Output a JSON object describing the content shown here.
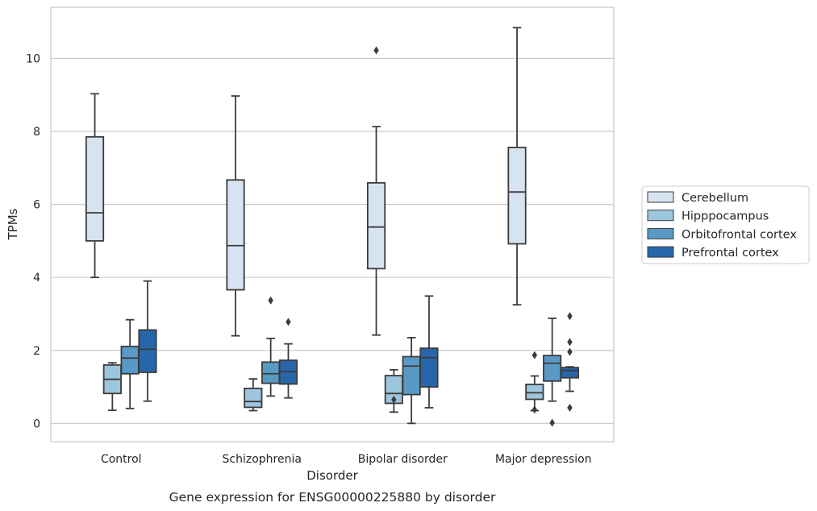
{
  "chart_data": {
    "type": "box",
    "caption": "Gene expression for ENSG00000225880 by disorder",
    "xlabel": "Disorder",
    "ylabel": "TPMs",
    "ylim": [
      -0.5,
      11.4
    ],
    "yticks": [
      0,
      2,
      4,
      6,
      8,
      10
    ],
    "grid": "horizontal",
    "legend_position": "right",
    "categories": [
      "Control",
      "Schizophrenia",
      "Bipolar disorder",
      "Major depression"
    ],
    "series": [
      {
        "name": "Cerebellum",
        "color": "#d6e4f2",
        "boxes": [
          {
            "whisker_low": 4.0,
            "q1": 5.0,
            "median": 5.77,
            "q3": 7.85,
            "whisker_high": 9.03,
            "outliers": []
          },
          {
            "whisker_low": 2.4,
            "q1": 3.66,
            "median": 4.87,
            "q3": 6.67,
            "whisker_high": 8.97,
            "outliers": []
          },
          {
            "whisker_low": 2.42,
            "q1": 4.24,
            "median": 5.38,
            "q3": 6.59,
            "whisker_high": 8.13,
            "outliers": [
              10.22
            ]
          },
          {
            "whisker_low": 3.25,
            "q1": 4.92,
            "median": 6.34,
            "q3": 7.56,
            "whisker_high": 10.84,
            "outliers": []
          }
        ]
      },
      {
        "name": "Hipppocampus",
        "color": "#9cc6de",
        "boxes": [
          {
            "whisker_low": 0.36,
            "q1": 0.82,
            "median": 1.21,
            "q3": 1.6,
            "whisker_high": 1.66,
            "outliers": []
          },
          {
            "whisker_low": 0.35,
            "q1": 0.44,
            "median": 0.6,
            "q3": 0.96,
            "whisker_high": 1.22,
            "outliers": []
          },
          {
            "whisker_low": 0.31,
            "q1": 0.55,
            "median": 0.82,
            "q3": 1.31,
            "whisker_high": 1.47,
            "outliers": [
              0.65
            ]
          },
          {
            "whisker_low": 0.35,
            "q1": 0.66,
            "median": 0.84,
            "q3": 1.07,
            "whisker_high": 1.3,
            "outliers": [
              0.38,
              1.87
            ]
          }
        ]
      },
      {
        "name": "Orbitofrontal cortex",
        "color": "#5899c6",
        "boxes": [
          {
            "whisker_low": 0.41,
            "q1": 1.36,
            "median": 1.79,
            "q3": 2.11,
            "whisker_high": 2.84,
            "outliers": []
          },
          {
            "whisker_low": 0.75,
            "q1": 1.1,
            "median": 1.36,
            "q3": 1.68,
            "whisker_high": 2.33,
            "outliers": [
              3.37
            ]
          },
          {
            "whisker_low": 0.0,
            "q1": 0.79,
            "median": 1.57,
            "q3": 1.83,
            "whisker_high": 2.35,
            "outliers": []
          },
          {
            "whisker_low": 0.61,
            "q1": 1.16,
            "median": 1.65,
            "q3": 1.86,
            "whisker_high": 2.88,
            "outliers": [
              0.02
            ]
          }
        ]
      },
      {
        "name": "Prefrontal cortex",
        "color": "#2866ab",
        "boxes": [
          {
            "whisker_low": 0.61,
            "q1": 1.4,
            "median": 2.03,
            "q3": 2.56,
            "whisker_high": 3.9,
            "outliers": []
          },
          {
            "whisker_low": 0.7,
            "q1": 1.08,
            "median": 1.42,
            "q3": 1.73,
            "whisker_high": 2.18,
            "outliers": [
              2.78
            ]
          },
          {
            "whisker_low": 0.43,
            "q1": 1.0,
            "median": 1.8,
            "q3": 2.06,
            "whisker_high": 3.49,
            "outliers": []
          },
          {
            "whisker_low": 0.88,
            "q1": 1.25,
            "median": 1.45,
            "q3": 1.53,
            "whisker_high": 1.55,
            "outliers": [
              0.43,
              1.96,
              2.23,
              2.94
            ]
          }
        ]
      }
    ]
  }
}
